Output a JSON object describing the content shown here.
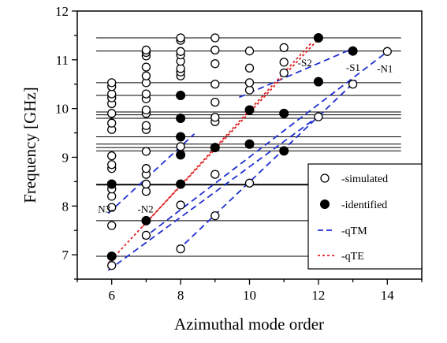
{
  "chart_data": {
    "type": "scatter",
    "xlabel": "Azimuthal mode order",
    "ylabel": "Frequency [GHz]",
    "xlim": [
      5,
      15
    ],
    "ylim": [
      6.5,
      12
    ],
    "x_ticks": [
      6,
      8,
      10,
      12,
      14
    ],
    "y_ticks": [
      7,
      8,
      9,
      10,
      11,
      12
    ],
    "x_tick_labels": [
      "6",
      "8",
      "10",
      "12",
      "14"
    ],
    "y_tick_labels": [
      "7",
      "8",
      "9",
      "10",
      "11",
      "12"
    ],
    "legend_position": "lower-right",
    "horizontal_lines": [
      6.97,
      7.7,
      8.43,
      8.45,
      9.13,
      9.2,
      9.27,
      9.42,
      9.8,
      9.87,
      9.93,
      10.27,
      10.53,
      11.18,
      11.45
    ],
    "series": [
      {
        "name": "-simulated",
        "marker": "open-circle",
        "points": [
          [
            6,
            6.78
          ],
          [
            6,
            7.6
          ],
          [
            6,
            7.97
          ],
          [
            6,
            8.2
          ],
          [
            6,
            8.35
          ],
          [
            6,
            8.45
          ],
          [
            6,
            8.77
          ],
          [
            6,
            8.85
          ],
          [
            6,
            9.03
          ],
          [
            6,
            9.57
          ],
          [
            6,
            9.7
          ],
          [
            6,
            9.9
          ],
          [
            6,
            10.1
          ],
          [
            6,
            10.22
          ],
          [
            6,
            10.3
          ],
          [
            6,
            10.45
          ],
          [
            6,
            10.53
          ],
          [
            7,
            7.4
          ],
          [
            7,
            8.3
          ],
          [
            7,
            8.45
          ],
          [
            7,
            8.65
          ],
          [
            7,
            8.77
          ],
          [
            7,
            9.12
          ],
          [
            7,
            9.57
          ],
          [
            7,
            9.65
          ],
          [
            7,
            9.9
          ],
          [
            7,
            9.97
          ],
          [
            7,
            10.2
          ],
          [
            7,
            10.3
          ],
          [
            7,
            10.53
          ],
          [
            7,
            10.67
          ],
          [
            7,
            10.85
          ],
          [
            7,
            11.08
          ],
          [
            7,
            11.15
          ],
          [
            7,
            11.2
          ],
          [
            8,
            7.12
          ],
          [
            8,
            8.02
          ],
          [
            8,
            9.22
          ],
          [
            8,
            10.67
          ],
          [
            8,
            10.75
          ],
          [
            8,
            10.82
          ],
          [
            8,
            10.97
          ],
          [
            8,
            11.1
          ],
          [
            8,
            11.17
          ],
          [
            8,
            11.4
          ],
          [
            8,
            11.45
          ],
          [
            9,
            7.8
          ],
          [
            9,
            8.65
          ],
          [
            9,
            9.73
          ],
          [
            9,
            9.82
          ],
          [
            9,
            10.13
          ],
          [
            9,
            10.5
          ],
          [
            9,
            10.92
          ],
          [
            9,
            11.2
          ],
          [
            9,
            11.45
          ],
          [
            10,
            8.47
          ],
          [
            10,
            10.38
          ],
          [
            10,
            10.53
          ],
          [
            10,
            10.83
          ],
          [
            10,
            11.18
          ],
          [
            11,
            10.73
          ],
          [
            11,
            10.95
          ],
          [
            11,
            11.25
          ],
          [
            12,
            9.83
          ],
          [
            13,
            10.5
          ],
          [
            14,
            11.17
          ]
        ]
      },
      {
        "name": "-identified",
        "marker": "filled-circle",
        "points": [
          [
            6,
            6.97
          ],
          [
            6,
            8.45
          ],
          [
            7,
            7.7
          ],
          [
            8,
            8.45
          ],
          [
            8,
            9.05
          ],
          [
            8,
            9.42
          ],
          [
            8,
            9.8
          ],
          [
            8,
            10.27
          ],
          [
            9,
            9.2
          ],
          [
            10,
            9.27
          ],
          [
            10,
            9.97
          ],
          [
            11,
            9.13
          ],
          [
            11,
            9.9
          ],
          [
            12,
            10.55
          ],
          [
            12,
            11.45
          ],
          [
            13,
            11.18
          ]
        ]
      },
      {
        "name": "-qTM",
        "style": "dashed",
        "color": "#1f2fd0",
        "lines": [
          [
            [
              5.9,
              6.68
            ],
            [
              12.15,
              9.92
            ]
          ],
          [
            [
              6.9,
              7.33
            ],
            [
              14.1,
              11.22
            ]
          ],
          [
            [
              5.9,
              7.85
            ],
            [
              8.4,
              9.48
            ]
          ],
          [
            [
              7.9,
              7.08
            ],
            [
              13.1,
              10.58
            ]
          ],
          [
            [
              9.7,
              10.23
            ],
            [
              12.9,
              11.2
            ]
          ]
        ]
      },
      {
        "name": "-qTE",
        "style": "dotted",
        "color": "#e02020",
        "lines": [
          [
            [
              5.9,
              6.83
            ],
            [
              12.1,
              11.5
            ]
          ],
          [
            [
              6.9,
              7.58
            ],
            [
              11.8,
              11.35
            ]
          ]
        ]
      }
    ],
    "annotations": [
      {
        "text": "N3-",
        "x": 5.6,
        "y": 7.95
      },
      {
        "text": "-N2",
        "x": 6.75,
        "y": 7.95
      },
      {
        "text": "-S2",
        "x": 11.4,
        "y": 10.95
      },
      {
        "text": "-S1",
        "x": 12.8,
        "y": 10.85
      },
      {
        "text": "-N1",
        "x": 13.7,
        "y": 10.83
      }
    ]
  }
}
